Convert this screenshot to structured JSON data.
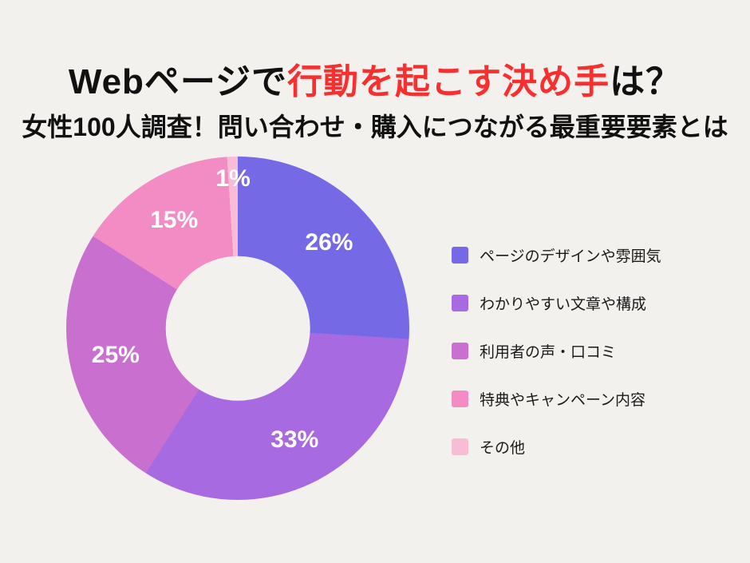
{
  "page": {
    "background": "#f3f1ee"
  },
  "header": {
    "title_prefix": "Webページで",
    "title_highlight": "行動を起こす決め手",
    "title_suffix": "は？",
    "highlight_color": "#f72f2f",
    "subtitle": "女性100人調査！問い合わせ・購入につながる最重要要素とは"
  },
  "chart_data": {
    "type": "pie",
    "variant": "donut",
    "title": "Webページで行動を起こす決め手は？",
    "subtitle": "女性100人調査！問い合わせ・購入につながる最重要要素とは",
    "start_angle_deg": 0,
    "direction": "clockwise",
    "inner_radius_ratio": 0.42,
    "legend_position": "right",
    "slice_label_color": "#ffffff",
    "items": [
      {
        "label": "ページのデザインや雰囲気",
        "value": 26,
        "pct_label": "26%",
        "color": "#7569e6",
        "label_radius_ratio": 0.73
      },
      {
        "label": "わかりやすい文章や構成",
        "value": 33,
        "pct_label": "33%",
        "color": "#a76ae1",
        "label_radius_ratio": 0.73
      },
      {
        "label": "利用者の声・口コミ",
        "value": 25,
        "pct_label": "25%",
        "color": "#c96fd0",
        "label_radius_ratio": 0.73
      },
      {
        "label": "特典やキャンペーン内容",
        "value": 15,
        "pct_label": "15%",
        "color": "#f38cc5",
        "label_radius_ratio": 0.73
      },
      {
        "label": "その他",
        "value": 1,
        "pct_label": "1%",
        "color": "#f9bcd6",
        "label_radius_ratio": 0.87
      }
    ]
  }
}
